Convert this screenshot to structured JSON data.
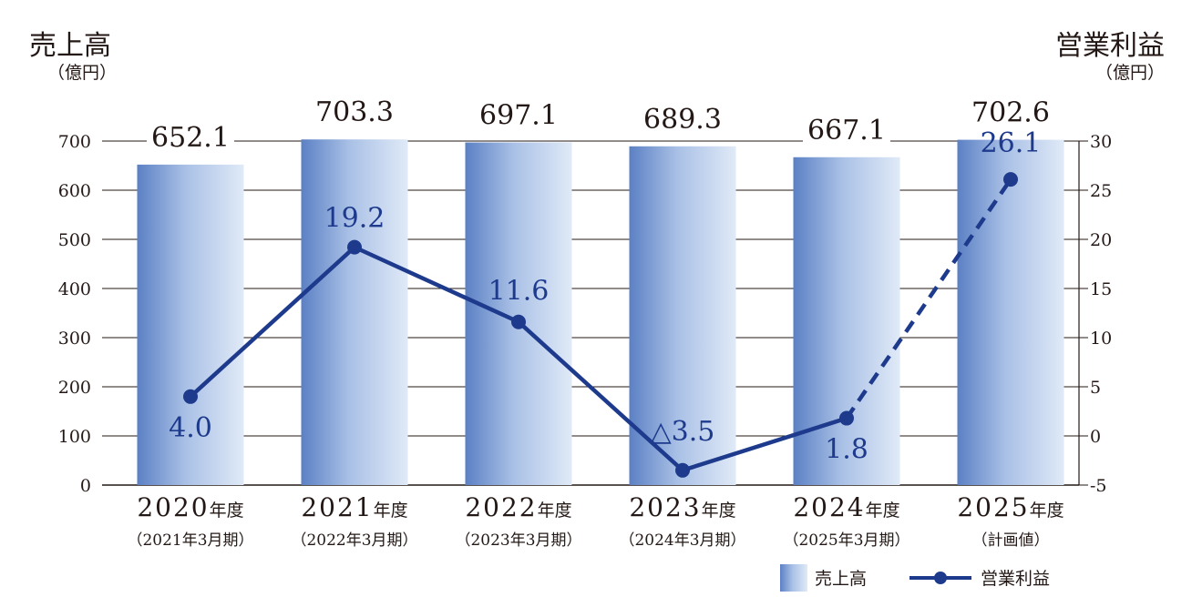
{
  "chart_data": {
    "type": "bar",
    "left_axis": {
      "title": "売上高",
      "unit": "（億円）",
      "ylim": [
        0,
        700
      ],
      "ticks": [
        0,
        100,
        200,
        300,
        400,
        500,
        600,
        700
      ]
    },
    "right_axis": {
      "title": "営業利益",
      "unit": "（億円）",
      "ylim": [
        -5,
        30
      ],
      "ticks": [
        -5,
        0,
        5,
        10,
        15,
        20,
        25,
        30
      ]
    },
    "categories": [
      {
        "year": "2020",
        "suffix": "年度",
        "sub": "（2021年3月期）"
      },
      {
        "year": "2021",
        "suffix": "年度",
        "sub": "（2022年3月期）"
      },
      {
        "year": "2022",
        "suffix": "年度",
        "sub": "（2023年3月期）"
      },
      {
        "year": "2023",
        "suffix": "年度",
        "sub": "（2024年3月期）"
      },
      {
        "year": "2024",
        "suffix": "年度",
        "sub": "（2025年3月期）"
      },
      {
        "year": "2025",
        "suffix": "年度",
        "sub": "（計画値）"
      }
    ],
    "series": [
      {
        "name": "売上高",
        "type": "bar",
        "axis": "left",
        "values": [
          652.1,
          703.3,
          697.1,
          689.3,
          667.1,
          702.6
        ],
        "labels": [
          "652.1",
          "703.3",
          "697.1",
          "689.3",
          "667.1",
          "702.6"
        ]
      },
      {
        "name": "営業利益",
        "type": "line",
        "axis": "right",
        "values": [
          4.0,
          19.2,
          11.6,
          -3.5,
          1.8,
          26.1
        ],
        "labels": [
          "4.0",
          "19.2",
          "11.6",
          "△3.5",
          "1.8",
          "26.1"
        ],
        "dashed_last_segment": true
      }
    ],
    "grid": true,
    "legend_position": "bottom-right"
  },
  "colors": {
    "line": "#1d3a8c",
    "bar_dark": "#5b80c4",
    "bar_light": "#dde8f6",
    "grid": "#231815",
    "text": "#231815"
  }
}
